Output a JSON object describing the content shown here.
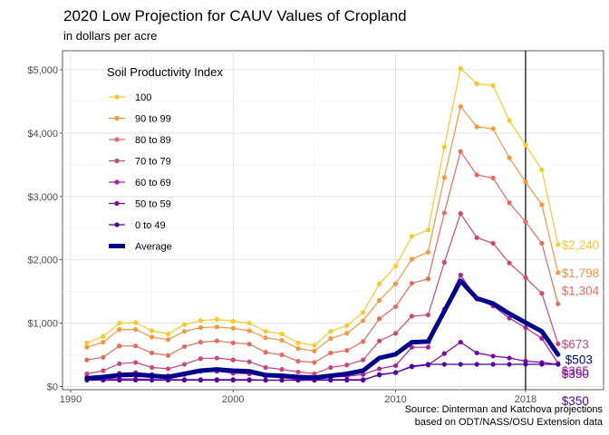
{
  "title": "2020 Low Projection for CAUV Values of Cropland",
  "subtitle": "in dollars per acre",
  "caption": [
    "Source: Dinterman and Katchova projections",
    "based on ODT/NASS/OSU Extension data"
  ],
  "chart_data": {
    "type": "line",
    "x": [
      1991,
      1992,
      1993,
      1994,
      1995,
      1996,
      1997,
      1998,
      1999,
      2000,
      2001,
      2002,
      2003,
      2004,
      2005,
      2006,
      2007,
      2008,
      2009,
      2010,
      2011,
      2012,
      2013,
      2014,
      2015,
      2016,
      2017,
      2018,
      2019,
      2020
    ],
    "xlim": [
      1989.5,
      2022.8
    ],
    "ylim": [
      -50,
      5300
    ],
    "x_ticks": [
      1990,
      2000,
      2010,
      2018
    ],
    "x_tick_labels": [
      "1990",
      "2000",
      "2010",
      "2018"
    ],
    "y_ticks": [
      0,
      1000,
      2000,
      3000,
      4000,
      5000
    ],
    "y_tick_labels": [
      "$0",
      "$1,000",
      "$2,000",
      "$3,000",
      "$4,000",
      "$5,000"
    ],
    "vline_x": 2018,
    "grid": true,
    "legend_title": "Soil Productivity Index",
    "legend_position": "top-left",
    "series": [
      {
        "name": "100",
        "color": "#f9c929",
        "end_label": "$2,240",
        "values": [
          690,
          790,
          1000,
          1010,
          880,
          830,
          980,
          1040,
          1060,
          1030,
          1000,
          870,
          830,
          690,
          650,
          870,
          960,
          1170,
          1620,
          1900,
          2370,
          2470,
          3780,
          5020,
          4780,
          4750,
          4200,
          3810,
          3420,
          2240
        ]
      },
      {
        "name": "90 to 99",
        "color": "#f89541",
        "end_label": "$1,798",
        "values": [
          620,
          700,
          900,
          900,
          780,
          740,
          870,
          930,
          940,
          920,
          880,
          770,
          730,
          600,
          560,
          760,
          840,
          1040,
          1360,
          1620,
          2010,
          2120,
          3300,
          4420,
          4100,
          4070,
          3610,
          3230,
          2870,
          1798
        ]
      },
      {
        "name": "80 to 89",
        "color": "#e56b5d",
        "end_label": "$1,304",
        "values": [
          420,
          460,
          640,
          640,
          530,
          490,
          630,
          700,
          720,
          690,
          670,
          540,
          500,
          400,
          380,
          530,
          570,
          710,
          1070,
          1260,
          1630,
          1700,
          2740,
          3710,
          3340,
          3290,
          2900,
          2600,
          2260,
          1304
        ]
      },
      {
        "name": "70 to 79",
        "color": "#cb4679",
        "end_label": "$673",
        "values": [
          200,
          250,
          360,
          380,
          300,
          280,
          350,
          440,
          450,
          420,
          390,
          300,
          270,
          230,
          200,
          300,
          340,
          420,
          720,
          840,
          1110,
          1130,
          1960,
          2730,
          2350,
          2260,
          1950,
          1720,
          1470,
          673
        ]
      },
      {
        "name": "60 to 69",
        "color": "#a72197",
        "end_label": "$365",
        "values": [
          150,
          150,
          210,
          220,
          190,
          170,
          190,
          240,
          240,
          210,
          200,
          160,
          140,
          110,
          100,
          150,
          160,
          190,
          280,
          330,
          620,
          620,
          1220,
          1760,
          1380,
          1270,
          1080,
          930,
          760,
          365
        ]
      },
      {
        "name": "50 to 59",
        "color": "#7e03a8",
        "end_label": "$350",
        "values": [
          120,
          120,
          120,
          120,
          110,
          110,
          110,
          110,
          110,
          110,
          110,
          100,
          100,
          100,
          100,
          110,
          110,
          110,
          180,
          220,
          310,
          340,
          520,
          700,
          530,
          480,
          450,
          400,
          380,
          350
        ]
      },
      {
        "name": "0 to 49",
        "color": "#4c02a1",
        "end_label": "$350",
        "values": [
          100,
          100,
          100,
          100,
          100,
          100,
          100,
          100,
          100,
          100,
          100,
          100,
          100,
          100,
          100,
          100,
          100,
          100,
          190,
          220,
          320,
          350,
          350,
          350,
          350,
          350,
          350,
          350,
          350,
          350
        ]
      },
      {
        "name": "Average",
        "color": "#00008b",
        "end_label": "$503",
        "is_average": true,
        "values": [
          130,
          150,
          180,
          190,
          170,
          150,
          200,
          250,
          270,
          250,
          240,
          180,
          170,
          150,
          140,
          170,
          200,
          250,
          450,
          510,
          700,
          710,
          1190,
          1670,
          1390,
          1310,
          1150,
          1010,
          870,
          503
        ]
      }
    ]
  }
}
